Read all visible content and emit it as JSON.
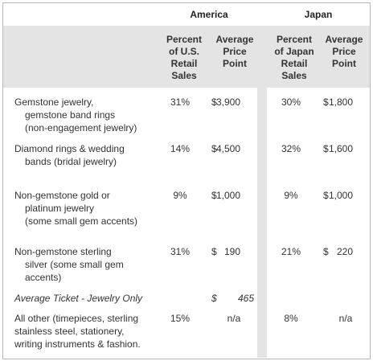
{
  "table": {
    "groups": [
      "America",
      "Japan"
    ],
    "columns": [
      [
        "Percent",
        "of U.S.",
        "Retail",
        "Sales"
      ],
      [
        "Average",
        "Price",
        "Point"
      ],
      [
        "Percent",
        "of Japan",
        "Retail",
        "Sales"
      ],
      [
        "Average",
        "Price",
        "Point"
      ]
    ],
    "rows": [
      {
        "label": [
          "Gemstone jewelry,",
          "gemstone band rings",
          "(non-engagement jewelry)"
        ],
        "us_pct": "31%",
        "us_price": [
          "$",
          "3,900"
        ],
        "jp_pct": "30%",
        "jp_price": [
          "$",
          "1,800"
        ]
      },
      {
        "label": [
          "Diamond rings & wedding",
          "bands (bridal jewelry)"
        ],
        "us_pct": "14%",
        "us_price": [
          "$",
          "4,500"
        ],
        "jp_pct": "32%",
        "jp_price": [
          "$",
          "1,600"
        ]
      },
      {
        "label": [
          "Non-gemstone gold or",
          "platinum jewelry",
          "(some small gem accents)"
        ],
        "us_pct": "9%",
        "us_price": [
          "$",
          "1,000"
        ],
        "jp_pct": "9%",
        "jp_price": [
          "$",
          "1,000"
        ]
      },
      {
        "label": [
          "Non-gemstone sterling",
          "silver (some small gem",
          "accents)"
        ],
        "us_pct": "31%",
        "us_price": [
          "$",
          "190"
        ],
        "jp_pct": "21%",
        "jp_price": [
          "$",
          "220"
        ]
      },
      {
        "label": [
          "Average Ticket - Jewelry Only"
        ],
        "us_price": [
          "$",
          "465"
        ]
      },
      {
        "label": [
          "All other (timepieces, sterling",
          "stainless steel, stationery,",
          "writing instruments & fashion."
        ],
        "us_pct": "15%",
        "us_price": [
          "n/a"
        ],
        "jp_pct": "8%",
        "jp_price": [
          "n/a"
        ]
      }
    ]
  }
}
